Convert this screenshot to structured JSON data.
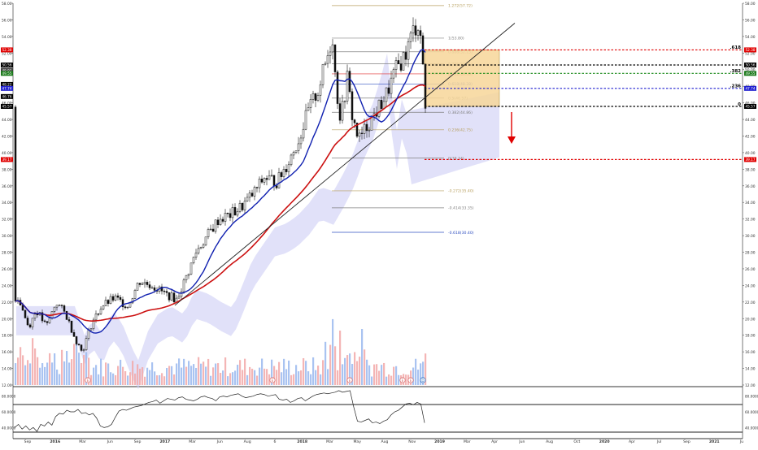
{
  "chart_data": {
    "type": "candlestick",
    "price_axis": {
      "min": 12,
      "max": 58,
      "step": 2,
      "tick_labels": [
        "12.00",
        "14.00",
        "16.00",
        "18.00",
        "20.00",
        "22.00",
        "24.00",
        "26.00",
        "28.00",
        "30.00",
        "32.00",
        "34.00",
        "36.00",
        "38.00",
        "40.00",
        "42.00",
        "44.00",
        "46.00",
        "48.00",
        "50.00",
        "52.00",
        "54.00",
        "56.00",
        "58.00"
      ]
    },
    "time_axis": {
      "labels": [
        "Sep",
        "2016",
        "Mar",
        "Jun",
        "Sep",
        "2017",
        "Mar",
        "Jun",
        "Aug",
        "6",
        "2018",
        "Mar",
        "May",
        "Aug",
        "Nov",
        "2019",
        "Mar",
        "Apr",
        "Jun",
        "Aug",
        "Oct",
        "2020",
        "Apr",
        "Jul",
        "Sep",
        "2021",
        "Ju"
      ]
    },
    "fibonacci_retracement": [
      {
        "label": "1.272(57.72)",
        "level": 57.72,
        "color": "#b8a060"
      },
      {
        "label": "1(53.80)",
        "level": 53.8,
        "color": "#808080"
      },
      {
        "label": "0.886(52.15)",
        "level": 52.15,
        "color": "#808080"
      },
      {
        "label": "0.786(50.71)",
        "level": 50.71,
        "color": "#808080"
      },
      {
        "label": "0.702(49.49)",
        "level": 49.49,
        "color": "#e03030"
      },
      {
        "label": "0.618(48.28)",
        "level": 48.28,
        "color": "#3050c0"
      },
      {
        "label": "0.5(46.57)",
        "level": 46.57,
        "color": "#808080"
      },
      {
        "label": "0.382(44.86)",
        "level": 44.86,
        "color": "#808080"
      },
      {
        "label": "0.236(42.75)",
        "level": 42.75,
        "color": "#b8a060"
      },
      {
        "label": "0(39.34)",
        "level": 39.34,
        "color": "#808080"
      },
      {
        "label": "-0.272(35.40)",
        "level": 35.4,
        "color": "#b8a060"
      },
      {
        "label": "-0.414(33.35)",
        "level": 33.35,
        "color": "#808080"
      },
      {
        "label": "-0.618(30.40)",
        "level": 30.4,
        "color": "#3050c0"
      }
    ],
    "horizontal_levels": [
      {
        "level": 52.38,
        "color": "#e00000",
        "style": "dotted",
        "price_tag": "52.38",
        "right_label": ".618"
      },
      {
        "level": 50.56,
        "color": "#000000",
        "style": "dotted",
        "price_tag": "50.56",
        "right_label": ""
      },
      {
        "level": 49.55,
        "color": "#1a8a1a",
        "style": "dotted",
        "price_tag": "49.55",
        "right_label": ".382"
      },
      {
        "level": 47.74,
        "color": "#2020d0",
        "style": "dotted",
        "price_tag": "47.74",
        "right_label": ".236"
      },
      {
        "level": 45.57,
        "color": "#000000",
        "style": "dotted",
        "price_tag": "45.57",
        "right_label": "0"
      },
      {
        "level": 39.17,
        "color": "#e00000",
        "style": "dotted",
        "price_tag": "39.17",
        "right_label": ""
      }
    ],
    "left_price_tags": [
      {
        "text": "52.38",
        "level": 52.38,
        "bg": "#e00000"
      },
      {
        "text": "50.56",
        "level": 50.56,
        "bg": "#000000"
      },
      {
        "text": "49.91",
        "level": 49.91,
        "bg": "#404040"
      },
      {
        "text": "49.55",
        "level": 49.55,
        "bg": "#1a7a1a"
      },
      {
        "text": "48.22",
        "level": 48.22,
        "bg": "#000000"
      },
      {
        "text": "47.74",
        "level": 47.74,
        "bg": "#2020d0"
      },
      {
        "text": "46.76",
        "level": 46.76,
        "bg": "#000000"
      },
      {
        "text": "45.57",
        "level": 45.57,
        "bg": "#000000"
      },
      {
        "text": "39.17",
        "level": 39.17,
        "bg": "#e00000"
      }
    ],
    "right_price_tags": [
      {
        "text": "52.38",
        "level": 52.38,
        "bg": "#e00000"
      },
      {
        "text": "50.56",
        "level": 50.56,
        "bg": "#000000"
      },
      {
        "text": "49.55",
        "level": 49.55,
        "bg": "#1a7a1a"
      },
      {
        "text": "47.74",
        "level": 47.74,
        "bg": "#2020d0"
      },
      {
        "text": "45.57",
        "level": 45.57,
        "bg": "#000000"
      },
      {
        "text": "39.17",
        "level": 39.17,
        "bg": "#e00000"
      }
    ],
    "rsi_panel": {
      "tick_labels": [
        "80.0000",
        "60.0000",
        "40.0000"
      ],
      "values": [
        40,
        44,
        38,
        42,
        37,
        40,
        35,
        44,
        42,
        47,
        43,
        54,
        58,
        57,
        62,
        60,
        60,
        63,
        58,
        59,
        56,
        58,
        52,
        42,
        40,
        41,
        44,
        53,
        61,
        63,
        62,
        64,
        66,
        67,
        68,
        70,
        72,
        73,
        75,
        71,
        74,
        77,
        76,
        75,
        78,
        79,
        76,
        75,
        74,
        76,
        79,
        80,
        78,
        77,
        74,
        79,
        80,
        79,
        81,
        82,
        83,
        80,
        78,
        79,
        80,
        82,
        83,
        82,
        80,
        81,
        82,
        76,
        75,
        76,
        72,
        74,
        77,
        78,
        74,
        77,
        80,
        82,
        83,
        84,
        83,
        84,
        85,
        87,
        85,
        86,
        87,
        66,
        48,
        47,
        49,
        51,
        46,
        47,
        45,
        48,
        50,
        56,
        60,
        62,
        66,
        70,
        71,
        69,
        72,
        70,
        46
      ]
    },
    "markers": [
      "E",
      "E",
      "E",
      "E",
      "E",
      "D"
    ]
  }
}
